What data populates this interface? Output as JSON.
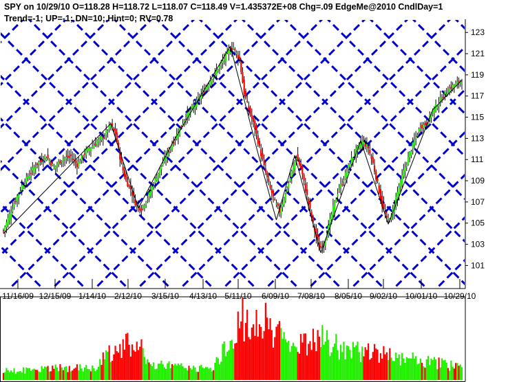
{
  "header": {
    "line1": "SPY on 10/29/10 O=118.28 H=118.72 L=118.07 C=118.49 V=1.435372E+08 Chg=.09  EdgeMe@2010 CndlDay=1",
    "line2": "Trend=-1; UP=-1; DN=10; Hint=0; RV=0.78"
  },
  "colors": {
    "up": "#22ee00",
    "down": "#ff0000",
    "grid": "#0000cc",
    "wick": "#000000",
    "background": "#ffffff"
  },
  "chart_data": {
    "type": "candlestick",
    "symbol": "SPY",
    "y_ticks": [
      "101",
      "103",
      "105",
      "107",
      "109",
      "111",
      "113",
      "115",
      "117",
      "119",
      "121",
      "123"
    ],
    "ylim": [
      99,
      124
    ],
    "x_tick_labels": [
      "11/16/09",
      "12/15/09",
      "1/14/10",
      "2/12/10",
      "3/15/10",
      "4/13/10",
      "5/11/10",
      "6/09/10",
      "7/08/10",
      "8/05/10",
      "9/02/10",
      "10/01/10",
      "10/29/10"
    ],
    "last_bar": {
      "date": "10/29/10",
      "open": 118.28,
      "high": 118.72,
      "low": 118.07,
      "close": 118.49,
      "volume": 143537200,
      "change": 0.09
    },
    "price_path": [
      [
        0,
        104.3
      ],
      [
        6,
        106.5
      ],
      [
        12,
        108.5
      ],
      [
        18,
        109.8
      ],
      [
        22,
        110.6
      ],
      [
        28,
        111.3
      ],
      [
        33,
        110.2
      ],
      [
        38,
        111.0
      ],
      [
        44,
        111.3
      ],
      [
        48,
        110.5
      ],
      [
        54,
        111.8
      ],
      [
        60,
        112.5
      ],
      [
        66,
        113.3
      ],
      [
        70,
        114.3
      ],
      [
        73,
        113.4
      ],
      [
        77,
        110.5
      ],
      [
        80,
        109.0
      ],
      [
        83,
        108.2
      ],
      [
        86,
        106.9
      ],
      [
        90,
        106.3
      ],
      [
        95,
        107.7
      ],
      [
        100,
        109.4
      ],
      [
        104,
        110.7
      ],
      [
        108,
        111.9
      ],
      [
        112,
        113.0
      ],
      [
        118,
        114.8
      ],
      [
        124,
        116.0
      ],
      [
        130,
        117.3
      ],
      [
        136,
        118.7
      ],
      [
        142,
        120.0
      ],
      [
        146,
        121.1
      ],
      [
        150,
        121.6
      ],
      [
        154,
        120.4
      ],
      [
        157,
        117.3
      ],
      [
        160,
        115.7
      ],
      [
        164,
        114.0
      ],
      [
        167,
        112.1
      ],
      [
        170,
        110.3
      ],
      [
        173,
        108.7
      ],
      [
        177,
        107.0
      ],
      [
        180,
        106.1
      ],
      [
        184,
        107.7
      ],
      [
        188,
        109.8
      ],
      [
        191,
        111.3
      ],
      [
        194,
        110.2
      ],
      [
        197,
        108.2
      ],
      [
        200,
        106.2
      ],
      [
        203,
        104.3
      ],
      [
        206,
        102.6
      ],
      [
        209,
        103.0
      ],
      [
        212,
        104.6
      ],
      [
        215,
        106.4
      ],
      [
        218,
        107.9
      ],
      [
        222,
        109.2
      ],
      [
        226,
        110.7
      ],
      [
        230,
        111.8
      ],
      [
        234,
        112.7
      ],
      [
        238,
        112.1
      ],
      [
        241,
        110.6
      ],
      [
        244,
        108.7
      ],
      [
        247,
        106.7
      ],
      [
        250,
        105.3
      ],
      [
        253,
        105.6
      ],
      [
        256,
        107.4
      ],
      [
        260,
        109.4
      ],
      [
        264,
        111.1
      ],
      [
        268,
        112.8
      ],
      [
        272,
        114.1
      ],
      [
        276,
        114.4
      ],
      [
        280,
        115.6
      ],
      [
        284,
        116.4
      ],
      [
        288,
        117.2
      ],
      [
        292,
        117.8
      ],
      [
        296,
        118.2
      ],
      [
        299,
        118.5
      ]
    ],
    "trend_lines": [
      [
        [
          0,
          104.0
        ],
        [
          70,
          114.4
        ]
      ],
      [
        [
          70,
          114.4
        ],
        [
          88,
          106.4
        ]
      ],
      [
        [
          88,
          106.4
        ],
        [
          110,
          112.5
        ]
      ],
      [
        [
          110,
          112.5
        ],
        [
          148,
          121.7
        ]
      ],
      [
        [
          148,
          121.7
        ],
        [
          166,
          111.6
        ]
      ],
      [
        [
          166,
          111.6
        ],
        [
          178,
          105.3
        ]
      ],
      [
        [
          178,
          105.3
        ],
        [
          190,
          111.4
        ]
      ],
      [
        [
          190,
          111.4
        ],
        [
          207,
          102.2
        ]
      ],
      [
        [
          207,
          102.2
        ],
        [
          233,
          112.8
        ]
      ],
      [
        [
          233,
          112.8
        ],
        [
          251,
          104.9
        ]
      ],
      [
        [
          251,
          104.9
        ],
        [
          280,
          115.7
        ]
      ],
      [
        [
          280,
          115.7
        ],
        [
          299,
          118.5
        ]
      ]
    ],
    "volume_scale": [
      0,
      100
    ],
    "volume_peaks": [
      [
        0,
        12
      ],
      [
        20,
        14
      ],
      [
        40,
        16
      ],
      [
        60,
        18
      ],
      [
        68,
        35
      ],
      [
        80,
        48
      ],
      [
        90,
        40
      ],
      [
        100,
        20
      ],
      [
        120,
        16
      ],
      [
        135,
        14
      ],
      [
        145,
        46
      ],
      [
        148,
        38
      ],
      [
        152,
        60
      ],
      [
        155,
        100
      ],
      [
        160,
        62
      ],
      [
        170,
        80
      ],
      [
        178,
        66
      ],
      [
        185,
        58
      ],
      [
        195,
        45
      ],
      [
        205,
        56
      ],
      [
        210,
        52
      ],
      [
        215,
        48
      ],
      [
        225,
        38
      ],
      [
        240,
        36
      ],
      [
        250,
        35
      ],
      [
        260,
        30
      ],
      [
        275,
        26
      ],
      [
        290,
        20
      ],
      [
        299,
        16
      ]
    ]
  }
}
